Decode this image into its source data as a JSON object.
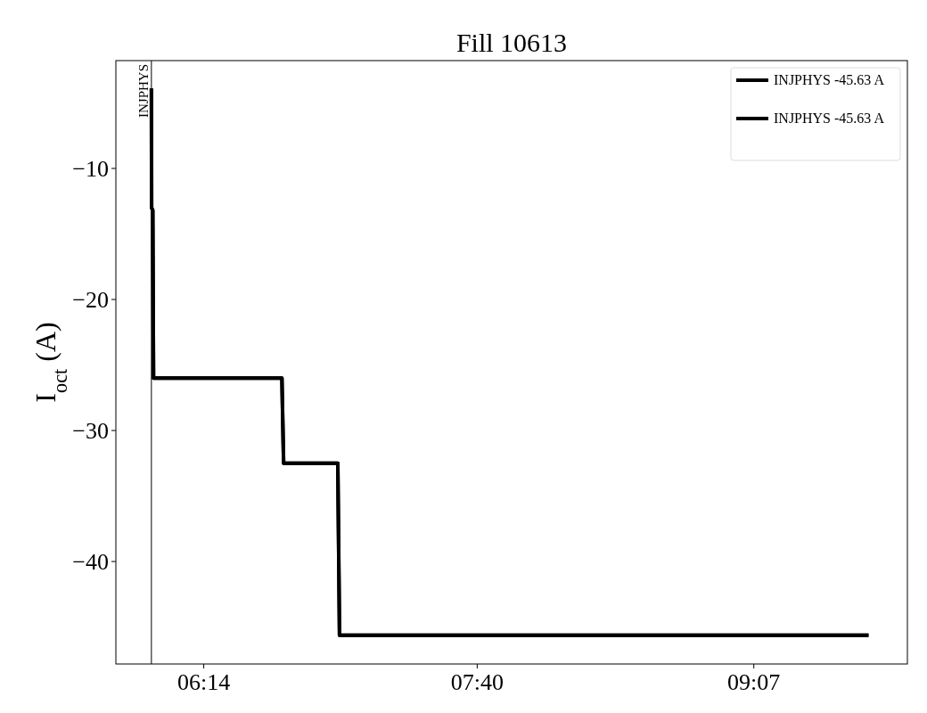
{
  "chart_data": {
    "type": "line",
    "title": "Fill 10613",
    "ylabel": "I$_{oct}$ (A)",
    "xlim": [
      5.7727,
      9.9217
    ],
    "ylim": [
      -47.82,
      -1.77
    ],
    "xticks": [
      {
        "value": 6.2333,
        "label": "06:14"
      },
      {
        "value": 7.6667,
        "label": "07:40"
      },
      {
        "value": 9.1167,
        "label": "09:07"
      }
    ],
    "yticks": [
      {
        "value": -10,
        "label": "−10"
      },
      {
        "value": -20,
        "label": "−20"
      },
      {
        "value": -30,
        "label": "−30"
      },
      {
        "value": -40,
        "label": "−40"
      }
    ],
    "series": [
      {
        "name": "INJPHYS -45.63 A",
        "color": "#000000",
        "x": [
          5.959,
          5.96,
          5.966,
          5.97,
          6.643,
          6.652,
          6.936,
          6.945,
          9.718
        ],
        "values": [
          -3.9,
          -13.0,
          -13.2,
          -26.0,
          -26.0,
          -32.5,
          -32.5,
          -45.63,
          -45.63
        ]
      },
      {
        "name": "INJPHYS -45.63 A",
        "color": "#000000",
        "x": [
          5.959,
          5.96,
          5.966,
          5.97,
          6.643,
          6.652,
          6.936,
          6.945,
          9.718
        ],
        "values": [
          -3.9,
          -13.0,
          -13.2,
          -26.0,
          -26.0,
          -32.5,
          -32.5,
          -45.63,
          -45.63
        ]
      }
    ],
    "ref_lines": [
      {
        "axis": "x",
        "value": 5.959,
        "label": "INJPHYS",
        "color": "#000000"
      }
    ],
    "legend": "top right",
    "grid": false
  }
}
